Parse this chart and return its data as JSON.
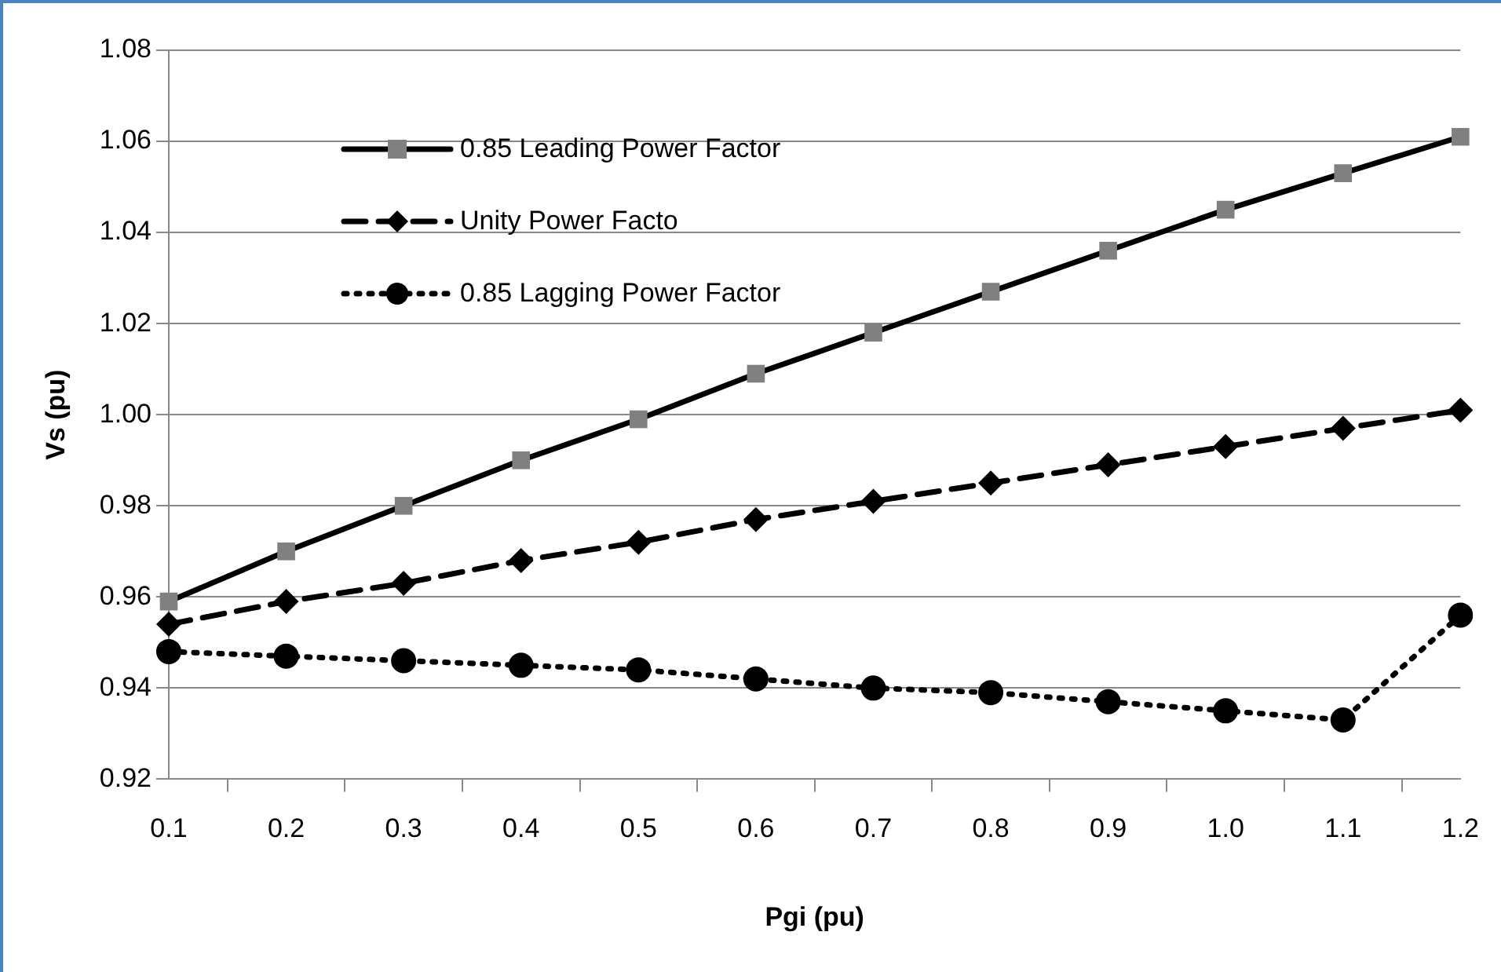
{
  "chart_data": {
    "type": "line",
    "xlabel": "Pgi (pu)",
    "ylabel": "Vs (pu)",
    "categories": [
      "0.1",
      "0.2",
      "0.3",
      "0.4",
      "0.5",
      "0.6",
      "0.7",
      "0.8",
      "0.9",
      "1.0",
      "1.1",
      "1.2"
    ],
    "series": [
      {
        "name": "0.85 Leading Power Factor",
        "color": "#000000",
        "colors": [
          "#808080",
          "#808080",
          "#808080",
          "#808080",
          "#808080",
          "#808080",
          "#808080",
          "#808080",
          "#808080",
          "#808080",
          "#808080",
          "#808080"
        ],
        "marker": "square",
        "line_style": "solid",
        "values": [
          0.959,
          0.97,
          0.98,
          0.99,
          0.999,
          1.009,
          1.018,
          1.027,
          1.036,
          1.045,
          1.053,
          1.061
        ]
      },
      {
        "name": "Unity Power Facto",
        "color": "#000000",
        "marker": "diamond",
        "line_style": "dashed",
        "values": [
          0.954,
          0.959,
          0.963,
          0.968,
          0.972,
          0.977,
          0.981,
          0.985,
          0.989,
          0.993,
          0.997,
          1.001
        ]
      },
      {
        "name": "0.85 Lagging Power Factor",
        "color": "#000000",
        "marker": "circle",
        "line_style": "dotted",
        "values": [
          0.948,
          0.947,
          0.946,
          0.945,
          0.944,
          0.942,
          0.94,
          0.939,
          0.937,
          0.935,
          0.933,
          0.956
        ]
      }
    ],
    "ylim": [
      0.92,
      1.08
    ],
    "yticks": [
      {
        "value": 0.92,
        "label": "0.92"
      },
      {
        "value": 0.94,
        "label": "0.94"
      },
      {
        "value": 0.96,
        "label": "0.96"
      },
      {
        "value": 0.98,
        "label": "0.98"
      },
      {
        "value": 1.0,
        "label": "1.00"
      },
      {
        "value": 1.02,
        "label": "1.02"
      },
      {
        "value": 1.04,
        "label": "1.04"
      },
      {
        "value": 1.06,
        "label": "1.06"
      },
      {
        "value": 1.08,
        "label": "1.08"
      }
    ],
    "grid": "y",
    "legend": "top left"
  }
}
